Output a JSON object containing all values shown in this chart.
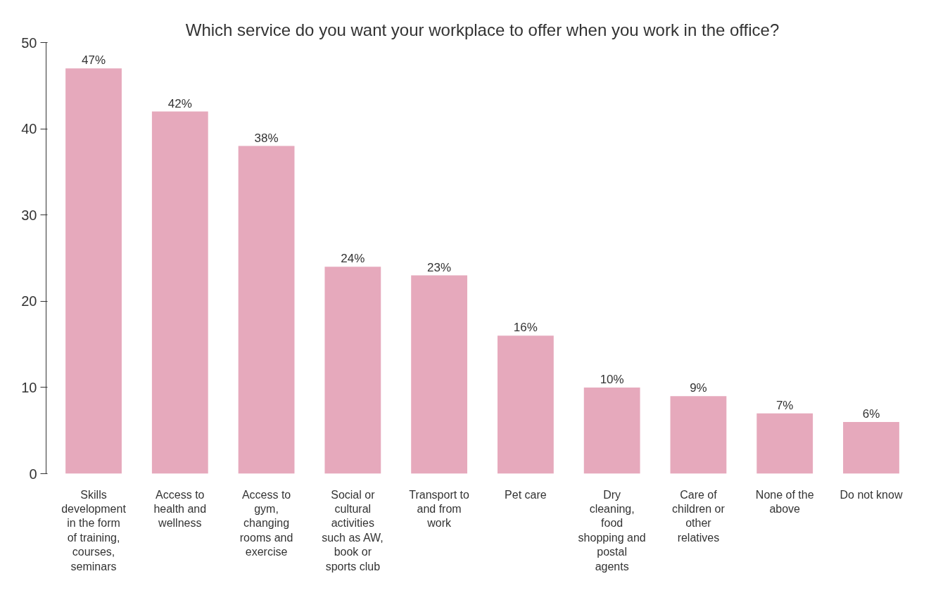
{
  "chart_data": {
    "type": "bar",
    "title": "Which service do you want your workplace to offer when you work in the office?",
    "categories": [
      "Skills development in the form of training, courses, seminars",
      "Access to health and wellness",
      "Access to gym, changing rooms and exercise",
      "Social or cultural activities such as AW, book or sports club",
      "Transport to and from work",
      "Pet care",
      "Dry cleaning, food shopping and postal agents",
      "Care of children or other relatives",
      "None of the above",
      "Do not know"
    ],
    "values": [
      47,
      42,
      38,
      24,
      23,
      16,
      10,
      9,
      7,
      6
    ],
    "value_labels": [
      "47%",
      "42%",
      "38%",
      "24%",
      "23%",
      "16%",
      "10%",
      "9%",
      "7%",
      "6%"
    ],
    "color": "#e6a9bc",
    "ylim": [
      0,
      50
    ],
    "yticks": [
      0,
      10,
      20,
      30,
      40,
      50
    ],
    "grid": false
  }
}
